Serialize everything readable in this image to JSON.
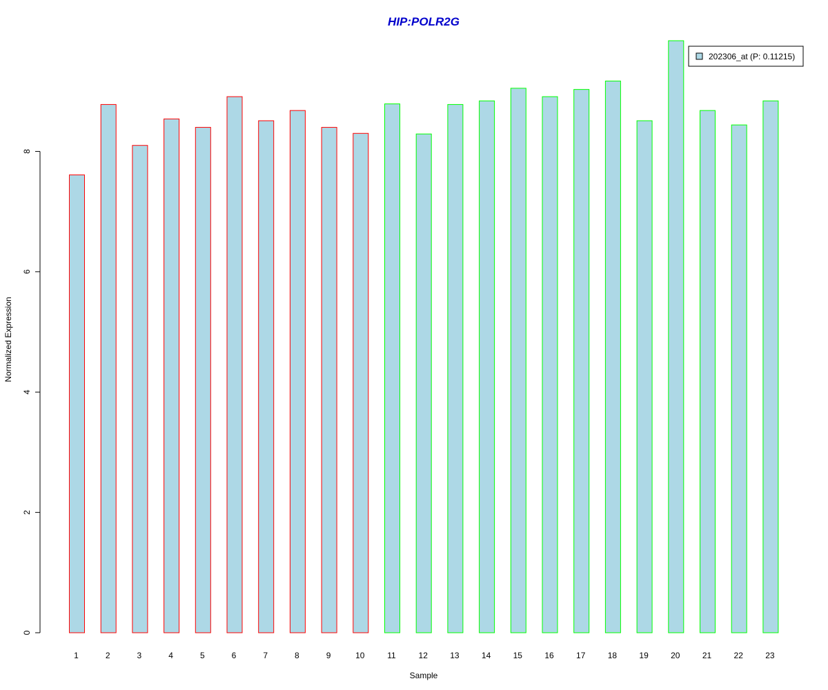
{
  "chart_data": {
    "type": "bar",
    "title": "HIP:POLR2G",
    "xlabel": "Sample",
    "ylabel": "Normalized Expression",
    "categories": [
      "1",
      "2",
      "3",
      "4",
      "5",
      "6",
      "7",
      "8",
      "9",
      "10",
      "11",
      "12",
      "13",
      "14",
      "15",
      "16",
      "17",
      "18",
      "19",
      "20",
      "21",
      "22",
      "23"
    ],
    "series": [
      {
        "name": "202306_at (P: 0.11215)",
        "values": [
          7.61,
          8.78,
          8.1,
          8.54,
          8.4,
          8.91,
          8.51,
          8.68,
          8.4,
          8.3,
          8.79,
          8.29,
          8.78,
          8.84,
          9.05,
          8.91,
          9.03,
          9.17,
          8.51,
          9.84,
          8.68,
          8.44,
          8.84
        ]
      }
    ],
    "ylim": [
      0,
      9.84
    ],
    "yticks": [
      "0",
      "2",
      "4",
      "6",
      "8"
    ],
    "grid": false,
    "legend_position": "top-right",
    "colors": {
      "title": "#0000cc",
      "bar_fill": "#add8e6",
      "group_1_border": "#ff0000",
      "group_2_border": "#00ff00"
    },
    "bar_border_groups": [
      "group_1_border",
      "group_1_border",
      "group_1_border",
      "group_1_border",
      "group_1_border",
      "group_1_border",
      "group_1_border",
      "group_1_border",
      "group_1_border",
      "group_1_border",
      "group_2_border",
      "group_2_border",
      "group_2_border",
      "group_2_border",
      "group_2_border",
      "group_2_border",
      "group_2_border",
      "group_2_border",
      "group_2_border",
      "group_2_border",
      "group_2_border",
      "group_2_border",
      "group_2_border"
    ]
  }
}
